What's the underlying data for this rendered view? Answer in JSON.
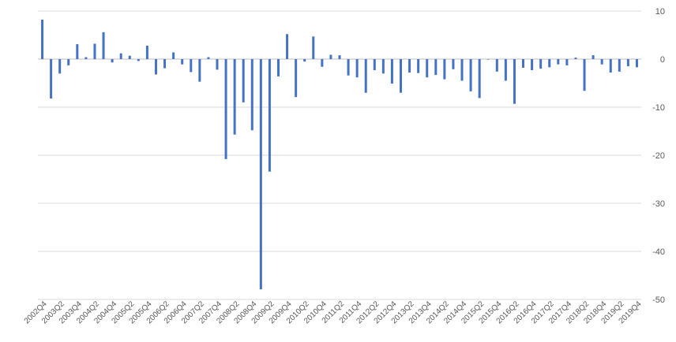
{
  "chart_data": {
    "type": "bar",
    "title": "",
    "xlabel": "",
    "ylabel": "",
    "ylim": [
      -50,
      10
    ],
    "yticks": [
      10,
      0,
      -10,
      -20,
      -30,
      -40,
      -50
    ],
    "y_axis_side": "right",
    "grid": true,
    "bar_color": "#4472C4",
    "categories": [
      "2002Q4",
      "2003Q1",
      "2003Q2",
      "2003Q3",
      "2003Q4",
      "2004Q1",
      "2004Q2",
      "2004Q3",
      "2004Q4",
      "2005Q1",
      "2005Q2",
      "2005Q3",
      "2005Q4",
      "2006Q1",
      "2006Q2",
      "2006Q3",
      "2006Q4",
      "2007Q1",
      "2007Q2",
      "2007Q3",
      "2007Q4",
      "2008Q1",
      "2008Q2",
      "2008Q3",
      "2008Q4",
      "2009Q1",
      "2009Q2",
      "2009Q3",
      "2009Q4",
      "2010Q1",
      "2010Q2",
      "2010Q3",
      "2010Q4",
      "2011Q1",
      "2011Q2",
      "2011Q3",
      "2011Q4",
      "2012Q1",
      "2012Q2",
      "2012Q3",
      "2012Q4",
      "2013Q1",
      "2013Q2",
      "2013Q3",
      "2013Q4",
      "2014Q1",
      "2014Q2",
      "2014Q3",
      "2014Q4",
      "2015Q1",
      "2015Q2",
      "2015Q3",
      "2015Q4",
      "2016Q1",
      "2016Q2",
      "2016Q3",
      "2016Q4",
      "2017Q1",
      "2017Q2",
      "2017Q3",
      "2017Q4",
      "2018Q1",
      "2018Q2",
      "2018Q3",
      "2018Q4",
      "2019Q1",
      "2019Q2",
      "2019Q3",
      "2019Q4"
    ],
    "values": [
      8.2,
      -8.2,
      -3.0,
      -1.3,
      3.1,
      0.4,
      3.2,
      5.6,
      -0.7,
      1.2,
      0.7,
      -0.4,
      2.8,
      -3.2,
      -1.9,
      1.4,
      -1.1,
      -2.7,
      -4.7,
      0.4,
      -2.2,
      -20.8,
      -15.7,
      -9.0,
      -14.8,
      -47.9,
      -23.4,
      -3.6,
      5.2,
      -7.9,
      -0.5,
      4.7,
      -1.6,
      0.9,
      0.8,
      -3.4,
      -3.8,
      -7.0,
      -2.3,
      -3.0,
      -5.1,
      -7.0,
      -2.8,
      -2.9,
      -3.8,
      -3.3,
      -4.2,
      -2.1,
      -4.5,
      -6.7,
      -8.1,
      -0.1,
      -2.6,
      -4.5,
      -9.3,
      -1.8,
      -2.3,
      -2.0,
      -1.7,
      -1.1,
      -1.3,
      0.3,
      -6.6,
      0.8,
      -1.1,
      -2.8,
      -2.6,
      -1.5,
      -1.7
    ],
    "xtick_labels": [
      "2002Q4",
      "2003Q2",
      "2003Q4",
      "2004Q2",
      "2004Q4",
      "2005Q2",
      "2005Q4",
      "2006Q2",
      "2006Q4",
      "2007Q2",
      "2007Q4",
      "2008Q2",
      "2008Q4",
      "2009Q2",
      "2009Q4",
      "2010Q2",
      "2010Q4",
      "2011Q2",
      "2011Q4",
      "2012Q2",
      "2012Q4",
      "2013Q2",
      "2013Q4",
      "2014Q2",
      "2014Q4",
      "2015Q2",
      "2015Q4",
      "2016Q2",
      "2016Q4",
      "2017Q2",
      "2017Q4",
      "2018Q2",
      "2018Q4",
      "2019Q2",
      "2019Q4"
    ]
  }
}
